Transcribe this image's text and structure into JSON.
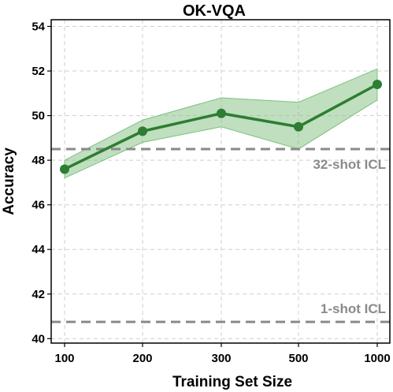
{
  "chart_data": {
    "type": "line",
    "title": "OK-VQA",
    "xlabel": "Training Set Size",
    "ylabel": "Accuracy",
    "categories": [
      "100",
      "200",
      "300",
      "500",
      "1000"
    ],
    "series": [
      {
        "values": [
          47.6,
          49.3,
          50.1,
          49.5,
          51.4
        ],
        "band_lower": [
          47.2,
          48.8,
          49.5,
          48.5,
          50.7
        ],
        "band_upper": [
          48.0,
          49.8,
          50.8,
          50.6,
          52.1
        ],
        "color": "#2e7d32",
        "band_color": "#7fbf7f"
      }
    ],
    "reference_lines": [
      {
        "label": "32-shot ICL",
        "value": 48.5,
        "color": "#8a8a8a"
      },
      {
        "label": "1-shot ICL",
        "value": 40.75,
        "color": "#8a8a8a"
      }
    ],
    "yticks": [
      40,
      42,
      44,
      46,
      48,
      50,
      52,
      54
    ],
    "ylim": [
      39.8,
      54.3
    ],
    "grid": true,
    "colors": {
      "grid": "#cfcfcf",
      "axis": "#000000"
    }
  }
}
